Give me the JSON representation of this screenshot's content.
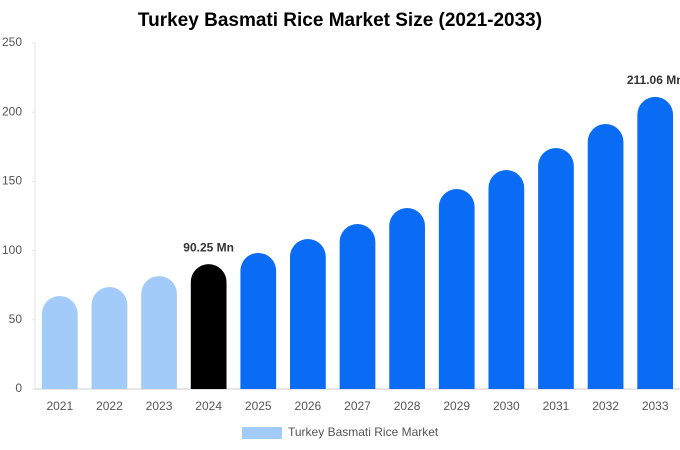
{
  "chart_data": {
    "type": "bar",
    "title": "Turkey Basmati Rice Market Size (2021-2033)",
    "categories": [
      "2021",
      "2022",
      "2023",
      "2024",
      "2025",
      "2026",
      "2027",
      "2028",
      "2029",
      "2030",
      "2031",
      "2032",
      "2033"
    ],
    "series": [
      {
        "name": "Turkey Basmati Rice Market",
        "color": "#a3cbfa",
        "values": [
          67.2,
          73.7,
          81.6,
          90.25,
          98.3,
          108.4,
          119.2,
          130.8,
          144.5,
          158.2,
          174.1,
          191.5,
          211.06
        ],
        "colors": [
          "#a3cbfa",
          "#a3cbfa",
          "#a3cbfa",
          "#000000",
          "#0a6cf5",
          "#0a6cf5",
          "#0a6cf5",
          "#0a6cf5",
          "#0a6cf5",
          "#0a6cf5",
          "#0a6cf5",
          "#0a6cf5",
          "#0a6cf5"
        ],
        "value_labels": [
          null,
          null,
          null,
          "90.25 Mn",
          null,
          null,
          null,
          null,
          null,
          null,
          null,
          null,
          "211.06 Mn"
        ]
      }
    ],
    "ylim": [
      0,
      250
    ],
    "yticks": [
      0,
      50,
      100,
      150,
      200,
      250
    ],
    "grid": false
  }
}
